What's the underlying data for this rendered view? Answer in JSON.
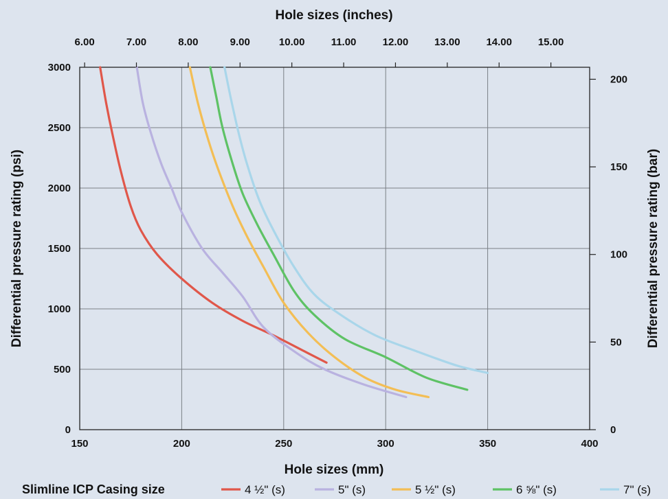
{
  "chart_data": {
    "type": "line",
    "title": "",
    "top_axis_label": "Hole sizes (inches)",
    "xlabel": "Hole sizes (mm)",
    "ylabel": "Differential pressure rating (psi)",
    "y2label": "Differential pressure rating (bar)",
    "xlim": [
      150,
      400
    ],
    "ylim": [
      0,
      3000
    ],
    "x_ticks": [
      "150",
      "200",
      "250",
      "300",
      "350",
      "400"
    ],
    "y_ticks": [
      "0",
      "500",
      "1000",
      "1500",
      "2000",
      "2500",
      "3000"
    ],
    "top_ticks": [
      {
        "label": "6.00",
        "inches": 6.0
      },
      {
        "label": "7.00",
        "inches": 7.0
      },
      {
        "label": "8.00",
        "inches": 8.0
      },
      {
        "label": "9.00",
        "inches": 9.0
      },
      {
        "label": "10.00",
        "inches": 10.0
      },
      {
        "label": "11.00",
        "inches": 11.0
      },
      {
        "label": "12.00",
        "inches": 12.0
      },
      {
        "label": "13.00",
        "inches": 13.0
      },
      {
        "label": "14.00",
        "inches": 14.0
      },
      {
        "label": "15.00",
        "inches": 15.0
      }
    ],
    "right_ticks": [
      {
        "label": "0",
        "bar": 0
      },
      {
        "label": "50",
        "bar": 50
      },
      {
        "label": "100",
        "bar": 100
      },
      {
        "label": "150",
        "bar": 150
      },
      {
        "label": "200",
        "bar": 200
      }
    ],
    "grid": true,
    "legend": {
      "title": "Slimline ICP Casing size",
      "placement": "bottom"
    },
    "series": [
      {
        "name": "4 ½\" (s)",
        "color": "#e0574a",
        "x": [
          160,
          163,
          166,
          170,
          175,
          180,
          188,
          200,
          215,
          230,
          245,
          260,
          271
        ],
        "y": [
          3000,
          2700,
          2450,
          2150,
          1850,
          1650,
          1450,
          1250,
          1050,
          900,
          780,
          650,
          555
        ]
      },
      {
        "name": "5\" (s)",
        "color": "#b9b2e0",
        "x": [
          178,
          181,
          185,
          190,
          195,
          200,
          210,
          220,
          230,
          240,
          255,
          270,
          290,
          310
        ],
        "y": [
          3000,
          2700,
          2450,
          2200,
          2000,
          1800,
          1500,
          1300,
          1100,
          850,
          650,
          500,
          370,
          270
        ]
      },
      {
        "name": "5 ½\" (s)",
        "color": "#f3be55",
        "x": [
          204,
          208,
          213,
          218,
          225,
          232,
          240,
          250,
          262,
          275,
          290,
          305,
          321
        ],
        "y": [
          3000,
          2700,
          2400,
          2150,
          1850,
          1600,
          1350,
          1050,
          800,
          600,
          430,
          330,
          270
        ]
      },
      {
        "name": "6 ⅝\" (s)",
        "color": "#5ec265",
        "x": [
          214,
          217,
          220,
          225,
          230,
          237,
          245,
          255,
          265,
          280,
          300,
          320,
          340
        ],
        "y": [
          3000,
          2750,
          2500,
          2200,
          1950,
          1700,
          1450,
          1150,
          950,
          750,
          600,
          430,
          330
        ]
      },
      {
        "name": "7\" (s)",
        "color": "#a9d6ea",
        "x": [
          221,
          224,
          228,
          232,
          238,
          245,
          255,
          265,
          278,
          295,
          315,
          335,
          350
        ],
        "y": [
          3000,
          2750,
          2450,
          2200,
          1900,
          1650,
          1350,
          1120,
          950,
          780,
          650,
          530,
          470
        ]
      }
    ]
  }
}
